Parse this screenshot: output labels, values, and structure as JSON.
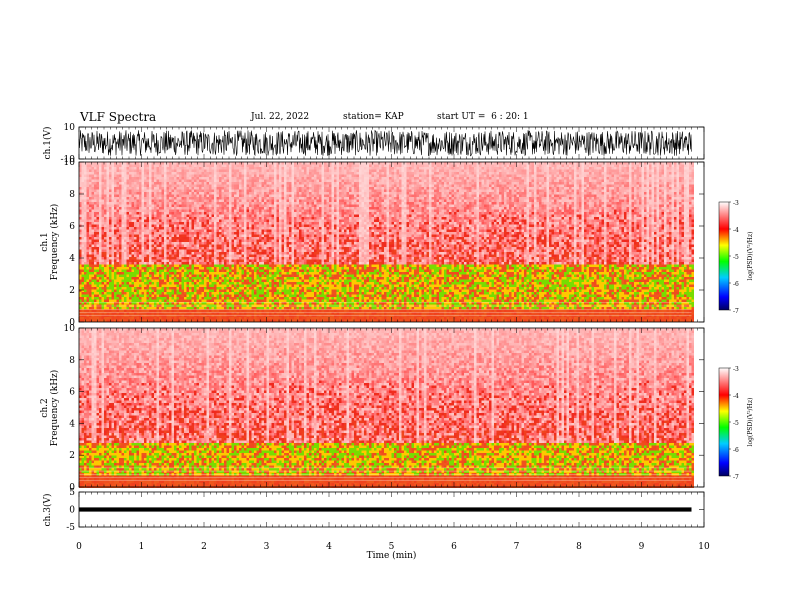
{
  "header": {
    "title": "VLF Spectra",
    "date": "Jul. 22, 2022",
    "station": "station= KAP",
    "start": "start UT =  6 : 20: 1"
  },
  "chart_data": [
    {
      "type": "line",
      "name": "waveform-ch1",
      "ylabel": "ch.1(V)",
      "ylim": [
        -10,
        10
      ],
      "y_ticks": [
        "10",
        "-10"
      ],
      "xlim": [
        0,
        10
      ],
      "description_values": {
        "amplitude_range_V": [
          -8,
          8
        ]
      }
    },
    {
      "type": "heatmap",
      "name": "spectrogram-ch1",
      "ylabel": "ch.1\nFrequency (kHz)",
      "ylabel_lines": [
        "ch.1",
        "Frequency (kHz)"
      ],
      "ylim": [
        0,
        10
      ],
      "y_ticks": [
        "0",
        "2",
        "4",
        "6",
        "8",
        "10"
      ],
      "xlim": [
        0,
        10
      ],
      "data_end_min": 9.8,
      "high_power_band_kHz": [
        0.8,
        3.6
      ],
      "colorbar": {
        "label": "log(PSD)(V²/Hz)",
        "range": [
          -7,
          -3
        ],
        "ticks": [
          "-3",
          "-4",
          "-5",
          "-6",
          "-7"
        ]
      }
    },
    {
      "type": "heatmap",
      "name": "spectrogram-ch2",
      "ylabel_lines": [
        "ch.2",
        "Frequency (kHz)"
      ],
      "ylim": [
        0,
        10
      ],
      "y_ticks": [
        "0",
        "2",
        "4",
        "6",
        "8",
        "10"
      ],
      "xlim": [
        0,
        10
      ],
      "data_end_min": 9.8,
      "high_power_band_kHz": [
        0.8,
        2.8
      ],
      "colorbar": {
        "label": "log(PSD)(V²/Hz)",
        "range": [
          -7,
          -3
        ],
        "ticks": [
          "-3",
          "-4",
          "-5",
          "-6",
          "-7"
        ]
      }
    },
    {
      "type": "line",
      "name": "waveform-ch3",
      "ylabel": "ch.3(V)",
      "ylim": [
        -5,
        5
      ],
      "y_ticks": [
        "5",
        "0",
        "-5"
      ],
      "xlim": [
        0,
        10
      ],
      "description_values": {
        "amplitude_range_V": [
          -0.6,
          0.6
        ]
      }
    }
  ],
  "x_axis": {
    "label": "Time (min)",
    "ticks": [
      "0",
      "1",
      "2",
      "3",
      "4",
      "5",
      "6",
      "7",
      "8",
      "9",
      "10"
    ]
  }
}
